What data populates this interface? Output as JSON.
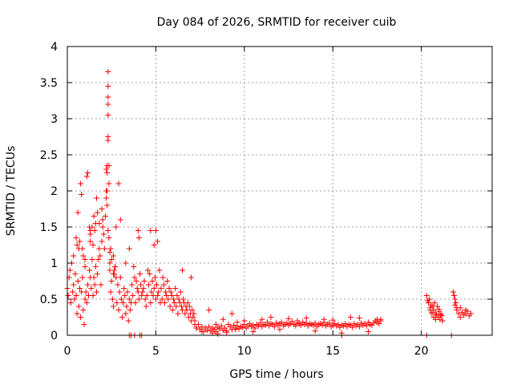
{
  "chart_data": {
    "type": "scatter",
    "title": "Day 084 of 2026, SRMTID for receiver cuib",
    "xlabel": "GPS time / hours",
    "ylabel": "SRMTID / TECUs",
    "xlim": [
      0,
      24
    ],
    "ylim": [
      0,
      4
    ],
    "x_ticks": [
      0,
      5,
      10,
      15,
      20
    ],
    "x_tick_labels": [
      "0",
      "5",
      "10",
      "15",
      "20"
    ],
    "y_ticks": [
      0,
      0.5,
      1,
      1.5,
      2,
      2.5,
      3,
      3.5,
      4
    ],
    "y_tick_labels": [
      "0",
      "0.5",
      "1",
      "1.5",
      "2",
      "2.5",
      "3",
      "3.5",
      "4"
    ],
    "grid": true,
    "marker": "+",
    "series": [
      {
        "name": "SRMTID",
        "color": "#ff0000",
        "x": [
          0.0,
          0.05,
          0.1,
          0.15,
          0.2,
          0.25,
          0.3,
          0.35,
          0.4,
          0.45,
          0.5,
          0.55,
          0.6,
          0.65,
          0.7,
          0.75,
          0.8,
          0.85,
          0.9,
          0.95,
          1.0,
          1.05,
          1.1,
          1.15,
          1.2,
          1.25,
          1.3,
          1.35,
          1.4,
          1.45,
          1.5,
          1.55,
          1.6,
          1.65,
          1.7,
          1.75,
          1.8,
          1.85,
          1.9,
          1.95,
          2.0,
          2.05,
          2.1,
          2.15,
          2.2,
          2.25,
          2.3,
          2.35,
          2.4,
          2.45,
          2.5,
          2.55,
          2.6,
          2.65,
          2.7,
          2.75,
          2.8,
          2.85,
          2.9,
          2.95,
          3.0,
          3.05,
          3.1,
          3.15,
          3.2,
          3.25,
          3.3,
          3.35,
          3.4,
          3.45,
          3.5,
          3.55,
          3.6,
          3.65,
          3.7,
          3.75,
          3.8,
          3.85,
          3.9,
          3.95,
          4.0,
          4.05,
          4.1,
          4.15,
          4.2,
          4.25,
          4.3,
          4.35,
          4.4,
          4.45,
          4.5,
          4.55,
          4.6,
          4.65,
          4.7,
          4.75,
          4.8,
          4.85,
          4.9,
          4.95,
          5.0,
          5.05,
          5.1,
          5.15,
          5.2,
          5.25,
          5.3,
          5.35,
          5.4,
          5.45,
          5.5,
          5.55,
          5.6,
          5.65,
          5.7,
          5.75,
          5.8,
          5.85,
          5.9,
          5.95,
          6.0,
          6.05,
          6.1,
          6.15,
          6.2,
          6.25,
          6.3,
          6.35,
          6.4,
          6.45,
          6.5,
          6.55,
          6.6,
          6.65,
          6.7,
          6.75,
          6.8,
          6.85,
          6.9,
          6.95,
          7.0,
          7.05,
          7.1,
          7.15,
          7.2,
          0.6,
          0.75,
          0.8,
          0.7,
          0.65,
          1.1,
          1.15,
          1.3,
          1.95,
          2.0,
          2.25,
          2.25,
          2.3,
          2.3,
          2.3,
          2.3,
          2.3,
          2.3,
          2.3,
          2.35,
          2.35,
          2.25,
          2.2,
          2.2,
          1.4,
          1.45,
          1.3,
          1.3,
          1.0,
          0.5,
          0.55,
          0.35,
          3.0,
          2.9,
          2.75,
          3.5,
          3.3,
          4.0,
          4.05,
          4.7,
          4.9,
          5.0,
          5.1,
          6.5,
          7.0,
          1.6,
          1.55,
          1.5,
          1.25,
          1.8,
          1.7,
          1.65,
          2.7,
          2.5,
          2.45,
          2.4,
          2.4,
          2.6,
          2.65,
          2.6,
          0.85,
          0.9,
          1.0,
          7.2,
          7.3,
          7.4,
          7.5,
          7.6,
          7.7,
          7.8,
          7.9,
          8.0,
          8.1,
          8.2,
          8.3,
          8.4,
          8.5,
          8.6,
          8.7,
          8.8,
          8.9,
          9.0,
          9.1,
          9.2,
          9.3,
          9.4,
          9.5,
          9.6,
          9.7,
          9.8,
          9.9,
          10.0,
          10.1,
          10.2,
          10.3,
          10.4,
          10.5,
          10.6,
          10.7,
          10.8,
          10.9,
          11.0,
          11.1,
          11.2,
          11.3,
          11.4,
          11.5,
          11.6,
          11.7,
          11.8,
          11.9,
          12.0,
          12.1,
          12.2,
          12.3,
          12.4,
          12.5,
          12.6,
          12.7,
          12.8,
          12.9,
          13.0,
          13.1,
          13.2,
          13.3,
          13.4,
          13.5,
          13.6,
          13.7,
          13.8,
          13.9,
          14.0,
          14.1,
          14.2,
          14.3,
          14.4,
          14.5,
          14.6,
          14.7,
          14.8,
          14.9,
          15.0,
          15.1,
          15.2,
          15.3,
          15.4,
          15.5,
          15.6,
          15.7,
          15.8,
          15.9,
          16.0,
          16.1,
          16.2,
          16.3,
          16.4,
          16.5,
          16.6,
          16.7,
          16.8,
          16.9,
          17.0,
          17.1,
          17.2,
          17.3,
          17.4,
          17.5,
          17.6,
          17.7,
          7.3,
          7.6,
          8.0,
          8.2,
          8.4,
          8.5,
          8.8,
          9.0,
          9.3,
          9.5,
          9.6,
          10.0,
          10.5,
          11.0,
          11.5,
          12.0,
          12.5,
          13.0,
          13.5,
          14.0,
          14.5,
          15.0,
          15.5,
          16.0,
          16.5,
          17.0,
          17.5,
          17.7,
          20.3,
          20.35,
          20.4,
          20.45,
          20.5,
          20.55,
          20.6,
          20.65,
          20.7,
          20.75,
          20.8,
          20.85,
          20.9,
          20.95,
          21.0,
          21.05,
          21.1,
          21.15,
          21.2,
          20.5,
          20.7,
          20.9,
          21.1,
          20.6,
          20.8,
          21.0,
          21.8,
          21.85,
          21.9,
          21.95,
          22.0,
          22.1,
          22.2,
          22.3,
          22.4,
          22.5,
          22.6,
          22.7,
          22.8,
          21.9,
          22.0,
          22.2,
          22.5,
          22.8,
          3.5,
          3.6,
          3.8,
          4.1,
          4.2,
          15.5,
          20.3,
          21.7
        ],
        "y": [
          0.65,
          0.55,
          0.8,
          0.9,
          0.45,
          1.0,
          0.6,
          0.7,
          0.5,
          0.85,
          0.55,
          0.3,
          0.75,
          0.4,
          0.65,
          0.25,
          0.6,
          0.8,
          0.35,
          0.15,
          0.5,
          0.6,
          0.45,
          0.7,
          0.55,
          0.9,
          0.8,
          0.65,
          1.05,
          0.55,
          0.8,
          0.7,
          0.95,
          0.6,
          0.85,
          1.05,
          1.2,
          1.1,
          0.7,
          1.3,
          1.5,
          1.4,
          1.2,
          1.65,
          1.9,
          2.0,
          1.45,
          1.35,
          0.9,
          0.6,
          0.75,
          0.5,
          0.4,
          0.85,
          0.95,
          0.8,
          0.45,
          0.7,
          0.35,
          0.6,
          0.8,
          0.5,
          0.25,
          0.45,
          0.65,
          0.55,
          0.3,
          0.4,
          0.6,
          0.2,
          0.5,
          0.35,
          0.45,
          0.7,
          0.55,
          0.95,
          0.8,
          0.45,
          0.75,
          0.65,
          0.6,
          0.5,
          0.85,
          0.7,
          0.55,
          0.6,
          0.65,
          0.75,
          0.5,
          0.4,
          0.55,
          0.9,
          0.7,
          0.85,
          0.45,
          0.6,
          0.75,
          0.55,
          0.65,
          0.8,
          0.5,
          0.7,
          0.55,
          0.6,
          0.9,
          0.45,
          0.65,
          0.5,
          0.8,
          0.7,
          0.45,
          0.6,
          0.55,
          0.75,
          0.5,
          0.65,
          0.4,
          0.6,
          0.55,
          0.35,
          0.5,
          0.45,
          0.65,
          0.4,
          0.55,
          0.3,
          0.5,
          0.45,
          0.6,
          0.4,
          0.35,
          0.5,
          0.45,
          0.3,
          0.4,
          0.35,
          0.45,
          0.25,
          0.4,
          0.3,
          0.2,
          0.35,
          0.25,
          0.3,
          0.15,
          1.7,
          2.1,
          1.95,
          1.3,
          1.2,
          2.2,
          2.25,
          1.45,
          1.75,
          1.6,
          2.35,
          2.25,
          2.7,
          2.75,
          3.05,
          3.2,
          3.3,
          3.45,
          3.65,
          2.35,
          2.1,
          1.8,
          2.3,
          2.0,
          1.5,
          1.25,
          1.4,
          1.3,
          1.05,
          1.35,
          1.25,
          1.1,
          1.6,
          2.1,
          1.5,
          1.2,
          1.0,
          1.45,
          1.35,
          1.45,
          1.25,
          1.45,
          1.3,
          0.9,
          0.8,
          1.55,
          1.45,
          1.65,
          1.5,
          1.55,
          1.7,
          1.9,
          0.95,
          1.05,
          1.2,
          1.0,
          1.15,
          1.1,
          0.9,
          0.85,
          1.2,
          1.1,
          0.95,
          0.2,
          0.1,
          0.15,
          0.08,
          0.12,
          0.05,
          0.1,
          0.07,
          0.12,
          0.06,
          0.1,
          0.08,
          0.05,
          0.11,
          0.09,
          0.13,
          0.07,
          0.1,
          0.06,
          0.15,
          0.12,
          0.08,
          0.14,
          0.1,
          0.13,
          0.09,
          0.12,
          0.11,
          0.15,
          0.1,
          0.13,
          0.16,
          0.12,
          0.14,
          0.1,
          0.15,
          0.13,
          0.17,
          0.12,
          0.15,
          0.14,
          0.18,
          0.13,
          0.16,
          0.15,
          0.12,
          0.17,
          0.14,
          0.16,
          0.18,
          0.13,
          0.15,
          0.17,
          0.14,
          0.16,
          0.19,
          0.15,
          0.13,
          0.17,
          0.16,
          0.14,
          0.18,
          0.15,
          0.17,
          0.13,
          0.16,
          0.15,
          0.14,
          0.17,
          0.12,
          0.15,
          0.16,
          0.14,
          0.18,
          0.13,
          0.15,
          0.17,
          0.12,
          0.14,
          0.16,
          0.13,
          0.15,
          0.11,
          0.14,
          0.13,
          0.16,
          0.12,
          0.15,
          0.14,
          0.11,
          0.16,
          0.13,
          0.15,
          0.12,
          0.17,
          0.14,
          0.16,
          0.13,
          0.18,
          0.15,
          0.14,
          0.17,
          0.2,
          0.18,
          0.16,
          0.22,
          0.1,
          0.05,
          0.35,
          0.03,
          0.15,
          0.02,
          0.22,
          0.04,
          0.3,
          0.08,
          0.18,
          0.2,
          0.05,
          0.22,
          0.25,
          0.08,
          0.23,
          0.2,
          0.24,
          0.06,
          0.22,
          0.21,
          0.03,
          0.25,
          0.24,
          0.05,
          0.22,
          0.2,
          0.55,
          0.48,
          0.45,
          0.5,
          0.38,
          0.42,
          0.3,
          0.4,
          0.35,
          0.45,
          0.3,
          0.28,
          0.4,
          0.25,
          0.33,
          0.22,
          0.3,
          0.27,
          0.2,
          0.35,
          0.25,
          0.4,
          0.28,
          0.32,
          0.22,
          0.36,
          0.6,
          0.55,
          0.5,
          0.45,
          0.35,
          0.3,
          0.38,
          0.32,
          0.28,
          0.3,
          0.33,
          0.27,
          0.3,
          0.42,
          0.38,
          0.25,
          0.35,
          0.3,
          0.0,
          0.0,
          0.0,
          0.0,
          0.0,
          0.0,
          0.0,
          0.0
        ]
      }
    ]
  }
}
